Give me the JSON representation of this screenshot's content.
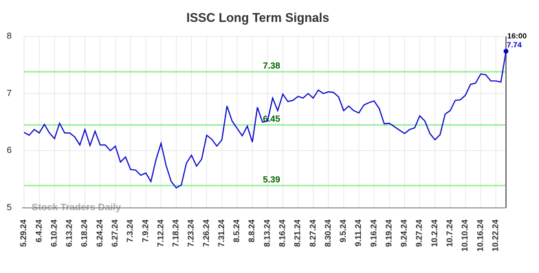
{
  "chart_data": {
    "type": "line",
    "title": "ISSC Long Term Signals",
    "categories": [
      "5.29.24",
      null,
      null,
      "6.4.24",
      null,
      null,
      "6.10.24",
      null,
      null,
      "6.13.24",
      null,
      null,
      "6.18.24",
      null,
      null,
      "6.24.24",
      null,
      null,
      "6.27.24",
      null,
      null,
      "7.3.24",
      null,
      null,
      "7.9.24",
      null,
      null,
      "7.12.24",
      null,
      null,
      "7.18.24",
      null,
      null,
      "7.23.24",
      null,
      null,
      "7.26.24",
      null,
      null,
      "7.31.24",
      null,
      null,
      "8.5.24",
      null,
      null,
      "8.8.24",
      null,
      null,
      "8.13.24",
      null,
      null,
      "8.16.24",
      null,
      null,
      "8.21.24",
      null,
      null,
      "8.27.24",
      null,
      null,
      "8.30.24",
      null,
      null,
      "9.5.24",
      null,
      null,
      "9.11.24",
      null,
      null,
      "9.16.24",
      null,
      null,
      "9.19.24",
      null,
      null,
      "9.24.24",
      null,
      null,
      "9.27.24",
      null,
      null,
      "10.2.24",
      null,
      null,
      "10.7.24",
      null,
      null,
      "10.10.24",
      null,
      null,
      "10.16.24",
      null,
      null,
      "10.22.24",
      null,
      null
    ],
    "values": [
      6.32,
      6.27,
      6.37,
      6.31,
      6.46,
      6.31,
      6.21,
      6.48,
      6.31,
      6.31,
      6.24,
      6.1,
      6.37,
      6.09,
      6.34,
      6.1,
      6.1,
      6.0,
      6.08,
      5.8,
      5.89,
      5.67,
      5.66,
      5.57,
      5.61,
      5.46,
      5.84,
      6.13,
      5.74,
      5.46,
      5.35,
      5.4,
      5.78,
      5.92,
      5.73,
      5.85,
      6.27,
      6.2,
      6.08,
      6.19,
      6.78,
      6.52,
      6.39,
      6.26,
      6.43,
      6.15,
      6.76,
      6.5,
      6.52,
      6.92,
      6.7,
      6.99,
      6.86,
      6.88,
      6.95,
      6.92,
      7.0,
      6.92,
      7.06,
      7.0,
      7.03,
      7.02,
      6.94,
      6.7,
      6.78,
      6.7,
      6.66,
      6.8,
      6.84,
      6.87,
      6.74,
      6.47,
      6.48,
      6.42,
      6.36,
      6.3,
      6.37,
      6.4,
      6.61,
      6.52,
      6.3,
      6.19,
      6.28,
      6.64,
      6.7,
      6.88,
      6.89,
      6.97,
      7.16,
      7.18,
      7.34,
      7.33,
      7.22,
      7.22,
      7.2,
      7.74
    ],
    "color": "#0000cc",
    "ylim": [
      5,
      8
    ],
    "yticks": [
      5,
      6,
      7,
      8
    ],
    "grid": true,
    "hlines": [
      {
        "value": 7.38,
        "color": "#90ee90"
      },
      {
        "value": 6.45,
        "color": "#90ee90"
      },
      {
        "value": 5.39,
        "color": "#90ee90"
      }
    ],
    "hline_label_color": "#006400",
    "last_time": "16:00",
    "watermark": "Stock Traders Daily"
  }
}
